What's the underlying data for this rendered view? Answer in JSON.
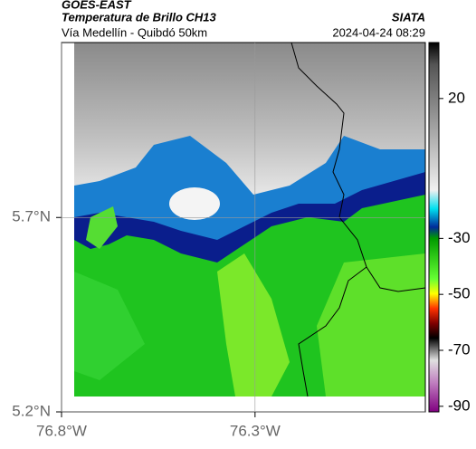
{
  "header": {
    "source": "GOES-EAST",
    "title": "Temperatura de Brillo CH13",
    "org": "SIATA",
    "route": "Vía Medellín - Quibdó 50km",
    "datetime": "2024-04-24 08:29"
  },
  "map": {
    "lat_lim": [
      5.2,
      6.15
    ],
    "lon_lim": [
      -76.8,
      -75.86
    ],
    "lat_ticks": [
      {
        "value": 5.7,
        "label": "5.7°N"
      },
      {
        "value": 5.2,
        "label": "5.2°N"
      }
    ],
    "lon_ticks": [
      {
        "value": -76.8,
        "label": "76.8°W"
      },
      {
        "value": -76.3,
        "label": "76.3°W"
      }
    ]
  },
  "colorbar": {
    "lim": [
      -92,
      40
    ],
    "ticks": [
      20,
      -30,
      -50,
      -70,
      -90
    ]
  }
}
